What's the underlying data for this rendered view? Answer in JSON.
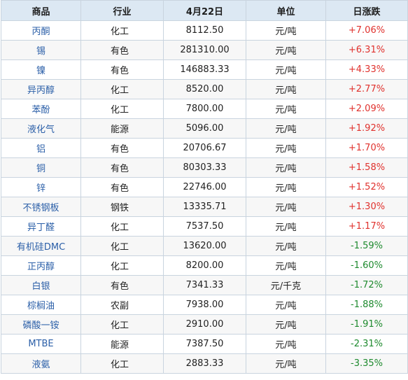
{
  "table": {
    "headers": {
      "name": "商品",
      "industry": "行业",
      "price": "4月22日",
      "unit": "单位",
      "change": "日涨跌"
    },
    "colors": {
      "up": "#e0312d",
      "down": "#1e8a2e",
      "link": "#2b5fa8",
      "header_bg": "#dce8f3"
    },
    "rows": [
      {
        "name": "丙酮",
        "industry": "化工",
        "price": "8112.50",
        "unit": "元/吨",
        "change": "+7.06%"
      },
      {
        "name": "锡",
        "industry": "有色",
        "price": "281310.00",
        "unit": "元/吨",
        "change": "+6.31%"
      },
      {
        "name": "镍",
        "industry": "有色",
        "price": "146883.33",
        "unit": "元/吨",
        "change": "+4.33%"
      },
      {
        "name": "异丙醇",
        "industry": "化工",
        "price": "8520.00",
        "unit": "元/吨",
        "change": "+2.77%"
      },
      {
        "name": "苯酚",
        "industry": "化工",
        "price": "7800.00",
        "unit": "元/吨",
        "change": "+2.09%"
      },
      {
        "name": "液化气",
        "industry": "能源",
        "price": "5096.00",
        "unit": "元/吨",
        "change": "+1.92%"
      },
      {
        "name": "铝",
        "industry": "有色",
        "price": "20706.67",
        "unit": "元/吨",
        "change": "+1.70%"
      },
      {
        "name": "铜",
        "industry": "有色",
        "price": "80303.33",
        "unit": "元/吨",
        "change": "+1.58%"
      },
      {
        "name": "锌",
        "industry": "有色",
        "price": "22746.00",
        "unit": "元/吨",
        "change": "+1.52%"
      },
      {
        "name": "不锈钢板",
        "industry": "钢铁",
        "price": "13335.71",
        "unit": "元/吨",
        "change": "+1.30%"
      },
      {
        "name": "异丁醛",
        "industry": "化工",
        "price": "7537.50",
        "unit": "元/吨",
        "change": "+1.17%"
      },
      {
        "name": "有机硅DMC",
        "industry": "化工",
        "price": "13620.00",
        "unit": "元/吨",
        "change": "-1.59%"
      },
      {
        "name": "正丙醇",
        "industry": "化工",
        "price": "8200.00",
        "unit": "元/吨",
        "change": "-1.60%"
      },
      {
        "name": "白银",
        "industry": "有色",
        "price": "7341.33",
        "unit": "元/千克",
        "change": "-1.72%"
      },
      {
        "name": "棕榈油",
        "industry": "农副",
        "price": "7938.00",
        "unit": "元/吨",
        "change": "-1.88%"
      },
      {
        "name": "磷酸一铵",
        "industry": "化工",
        "price": "2910.00",
        "unit": "元/吨",
        "change": "-1.91%"
      },
      {
        "name": "MTBE",
        "industry": "能源",
        "price": "7387.50",
        "unit": "元/吨",
        "change": "-2.31%"
      },
      {
        "name": "液氨",
        "industry": "化工",
        "price": "2883.33",
        "unit": "元/吨",
        "change": "-3.35%"
      }
    ]
  }
}
